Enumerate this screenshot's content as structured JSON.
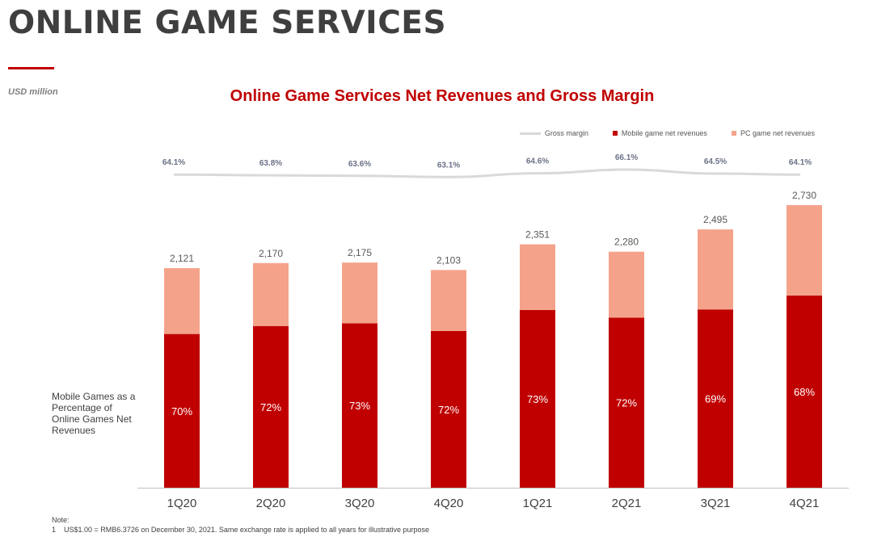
{
  "page": {
    "title": "ONLINE GAME SERVICES",
    "unit_label": "USD million",
    "side_label": "Mobile Games as a Percentage of Online Games Net Revenues",
    "note_heading": "Note:",
    "note_number": "1",
    "note_text": "US$1.00 = RMB6.3726 on December 30, 2021. Same exchange rate is applied to all years for illustrative purpose"
  },
  "colors": {
    "mobile": "#c00000",
    "pc": "#f4a38a",
    "margin_line": "#d9d9d9",
    "axis": "#bfbfbf",
    "title_red": "#c00000"
  },
  "chart_data": {
    "type": "bar",
    "title": "Online Game Services Net Revenues and Gross Margin",
    "stacked": true,
    "categories": [
      "1Q20",
      "2Q20",
      "3Q20",
      "4Q20",
      "1Q21",
      "2Q21",
      "3Q21",
      "4Q21"
    ],
    "totals": [
      "2,121",
      "2,170",
      "2,175",
      "2,103",
      "2,351",
      "2,280",
      "2,495",
      "2,730"
    ],
    "mobile_share": [
      "70%",
      "72%",
      "73%",
      "72%",
      "73%",
      "72%",
      "69%",
      "68%"
    ],
    "gross_margin": [
      "64.1%",
      "63.8%",
      "63.6%",
      "63.1%",
      "64.6%",
      "66.1%",
      "64.5%",
      "64.1%"
    ],
    "series": [
      {
        "name": "Mobile game net revenues",
        "values": [
          1485,
          1562,
          1588,
          1514,
          1716,
          1642,
          1722,
          1856
        ]
      },
      {
        "name": "PC game net revenues",
        "values": [
          636,
          608,
          587,
          589,
          635,
          638,
          773,
          874
        ]
      }
    ],
    "line_series": {
      "name": "Gross margin",
      "values": [
        64.1,
        63.8,
        63.6,
        63.1,
        64.6,
        66.1,
        64.5,
        64.1
      ]
    },
    "legend": [
      "Gross margin",
      "Mobile game net revenues",
      "PC game net revenues"
    ],
    "legend_position": "top-right",
    "ylim": [
      0,
      2730
    ],
    "xlabel": "",
    "ylabel": ""
  }
}
